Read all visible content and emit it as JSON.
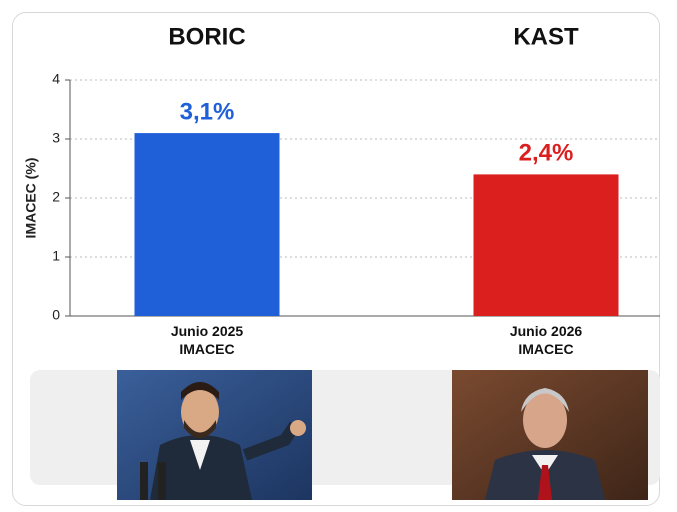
{
  "chart_data": {
    "type": "bar",
    "column_titles": [
      "BORIC",
      "KAST"
    ],
    "categories": [
      "Junio 2025\nIMACEC",
      "Junio 2026\nIMACEC"
    ],
    "values": [
      3.1,
      2.4
    ],
    "value_labels": [
      "3,1%",
      "2,4%"
    ],
    "colors": [
      "#1f5fd8",
      "#db1f1f"
    ],
    "ylabel": "IMACEC (%)",
    "ylim": [
      0,
      4
    ],
    "yticks": [
      0,
      1,
      2,
      3,
      4
    ],
    "grid": true
  }
}
